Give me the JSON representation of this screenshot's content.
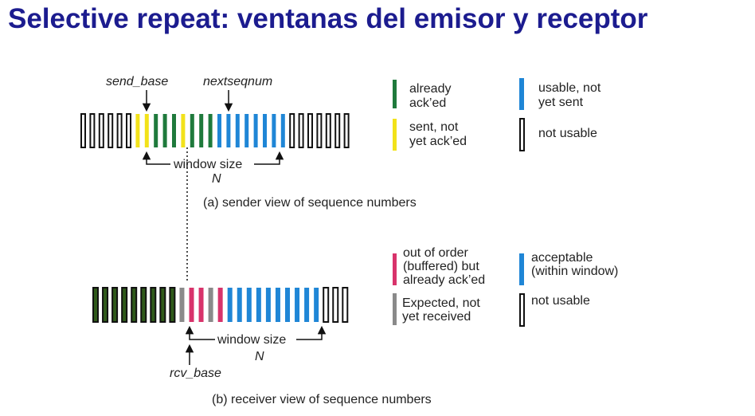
{
  "title": "Selective repeat: ventanas del emisor y receptor",
  "colors": {
    "title": "#1c1c8f",
    "acked_green": "#1f7a3c",
    "sent_yellow": "#f2e21a",
    "usable_blue": "#1f86d6",
    "unusable_white": "#ffffff",
    "outline": "#111111",
    "receiver_acked_dark": "#2f5a1a",
    "buffered_pink": "#d8336b",
    "expected_gray": "#8a8a8a"
  },
  "sender": {
    "send_base_label": "send_base",
    "nextseqnum_label": "nextseqnum",
    "window_size_label": "window size",
    "window_n_label": "N",
    "caption": "(a) sender view of sequence numbers",
    "slots": [
      "white",
      "white",
      "white",
      "white",
      "white",
      "white",
      "yellow",
      "yellow",
      "green",
      "green",
      "green",
      "yellow",
      "green",
      "green",
      "green",
      "blue",
      "blue",
      "blue",
      "blue",
      "blue",
      "blue",
      "blue",
      "blue",
      "white",
      "white",
      "white",
      "white",
      "white",
      "white",
      "white"
    ]
  },
  "sender_legend": {
    "acked": "already ack’ed",
    "sent_not_acked": "sent, not yet ack’ed",
    "usable": "usable, not yet sent",
    "not_usable": "not usable"
  },
  "receiver": {
    "rcv_base_label": "rcv_base",
    "window_size_label": "window size",
    "window_n_label": "N",
    "caption": "(b) receiver view of sequence numbers",
    "slots": [
      "dark",
      "dark",
      "dark",
      "dark",
      "dark",
      "dark",
      "dark",
      "dark",
      "dark",
      "gray",
      "pink",
      "pink",
      "gray",
      "pink",
      "blue",
      "blue",
      "blue",
      "blue",
      "blue",
      "blue",
      "blue",
      "blue",
      "blue",
      "blue",
      "white",
      "white",
      "white"
    ]
  },
  "receiver_legend": {
    "buffered": "out of order (buffered) but already ack’ed",
    "expected": "Expected, not yet received",
    "acceptable": "acceptable (within window)",
    "not_usable": "not usable"
  }
}
